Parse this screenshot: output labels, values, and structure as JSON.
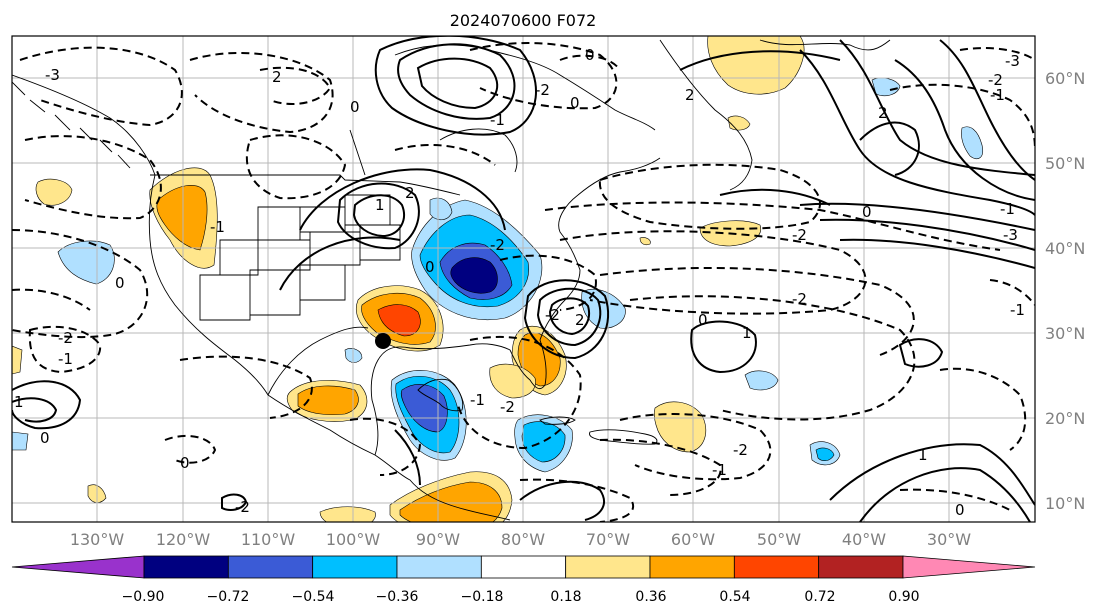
{
  "title": "2024070600 F072",
  "longitude_labels": [
    "130°W",
    "120°W",
    "110°W",
    "100°W",
    "90°W",
    "80°W",
    "70°W",
    "60°W",
    "50°W",
    "40°W",
    "30°W"
  ],
  "latitude_labels": [
    "60°N",
    "50°N",
    "40°N",
    "30°N",
    "20°N",
    "10°N"
  ],
  "colorbar": {
    "ticks": [
      "−0.90",
      "−0.72",
      "−0.54",
      "−0.36",
      "−0.18",
      "0.18",
      "0.36",
      "0.54",
      "0.72",
      "0.90"
    ],
    "colors": [
      "#9932cc",
      "#000080",
      "#3b5bd6",
      "#00bfff",
      "#b0e0ff",
      "#ffffff",
      "#ffe68c",
      "#ffa500",
      "#ff4500",
      "#b22222",
      "#ff88b4"
    ]
  },
  "contour_labels": [
    "-3",
    "2",
    "0",
    "-1",
    "0",
    "-2",
    "0",
    "2",
    "-1",
    "-2",
    "-3",
    "0",
    "2",
    "-1",
    "-2",
    "-1",
    "1",
    "-2",
    "0",
    "-1",
    "-2",
    "-1",
    "0",
    "1",
    "0",
    "-2",
    "-1",
    "-3",
    "-2",
    "0",
    "-2",
    "-1",
    "-2",
    "2",
    "0",
    "1",
    "0",
    "2",
    "-2",
    "1"
  ],
  "storm_marker": "hurricane-position-dot"
}
